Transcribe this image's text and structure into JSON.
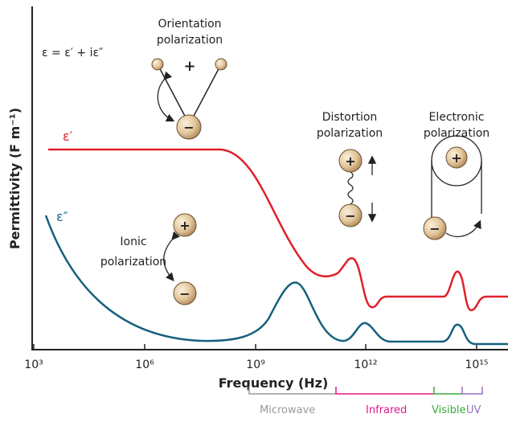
{
  "equation": "ε = ε′ + iε″",
  "curves": {
    "real": "ε′",
    "imaginary": "ε″"
  },
  "mechanisms": {
    "orientation": {
      "title": [
        "Orientation",
        "polarization"
      ],
      "charges": [
        "+",
        "−"
      ]
    },
    "ionic": {
      "title": [
        "Ionic",
        "polarization"
      ],
      "charges": [
        "+",
        "−"
      ]
    },
    "distortion": {
      "title": [
        "Distortion",
        "polarization"
      ],
      "charges": [
        "+",
        "−"
      ]
    },
    "electronic": {
      "title": [
        "Electronic",
        "polarization"
      ],
      "charges": [
        "+",
        "−"
      ]
    }
  },
  "axes": {
    "y_label": "Permittivity (F m⁻¹)",
    "x_label": "Frequency (Hz)",
    "x_ticks": [
      "10³",
      "10⁶",
      "10⁹",
      "10¹²",
      "10¹⁵"
    ]
  },
  "spectrum": [
    "Microwave",
    "Infrared",
    "Visible",
    "UV"
  ]
}
